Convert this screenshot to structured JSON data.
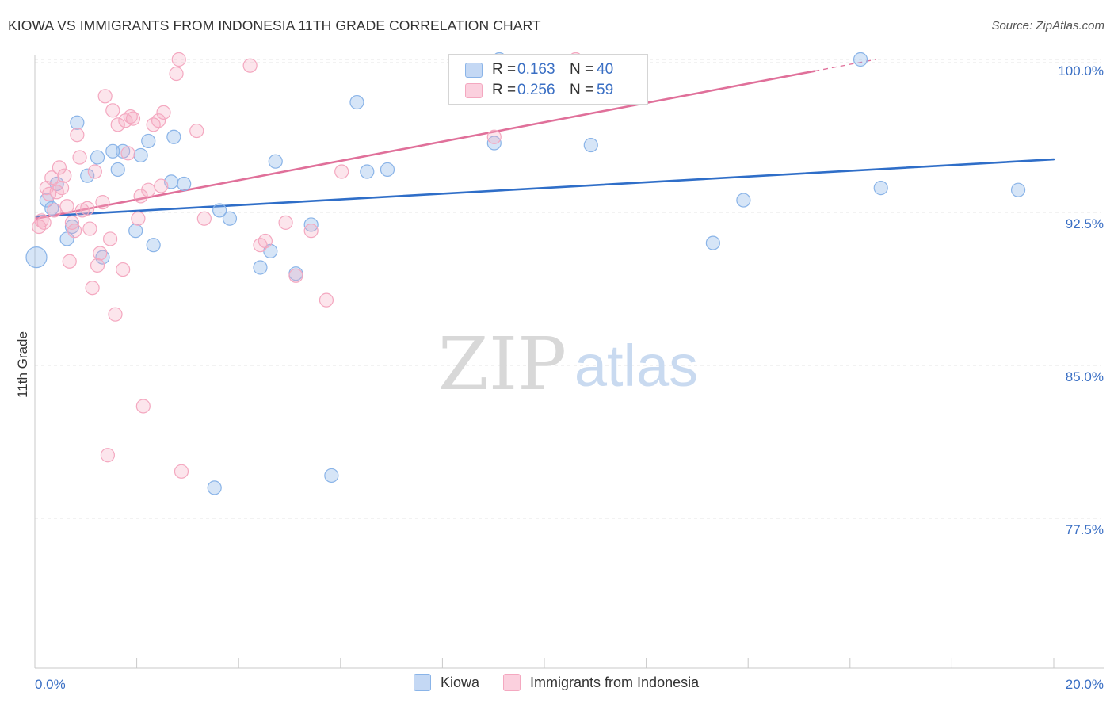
{
  "title": "KIOWA VS IMMIGRANTS FROM INDONESIA 11TH GRADE CORRELATION CHART",
  "source": "Source: ZipAtlas.com",
  "watermark": {
    "zip": "ZIP",
    "atlas": "atlas"
  },
  "legend": {
    "r_label": "R =",
    "n_label": "N =",
    "series": [
      {
        "r_value": "0.163",
        "n_value": "40"
      },
      {
        "r_value": "0.256",
        "n_value": "59"
      }
    ]
  },
  "chart_data": {
    "type": "scatter",
    "title": "KIOWA VS IMMIGRANTS FROM INDONESIA 11TH GRADE CORRELATION CHART",
    "xlabel": "",
    "ylabel": "11th Grade",
    "xlim": [
      0,
      20
    ],
    "ylim": [
      70,
      101.5
    ],
    "x_tick_labels": [
      "0.0%",
      "20.0%"
    ],
    "y_ticks": [
      77.5,
      85.0,
      92.5,
      100.0
    ],
    "y_tick_labels": [
      "77.5%",
      "85.0%",
      "92.5%",
      "100.0%"
    ],
    "grid": true,
    "legend_position": "top-center",
    "series": [
      {
        "name": "Kiowa",
        "color": "#8ab4e8",
        "line_color": "#2f6ec8",
        "trend": {
          "x0": 0,
          "y0": 92.3,
          "x1": 20,
          "y1": 95.1,
          "dash_from": 20
        },
        "points": [
          [
            0.0,
            90.3
          ],
          [
            0.2,
            93.1
          ],
          [
            0.3,
            92.7
          ],
          [
            0.4,
            93.9
          ],
          [
            0.6,
            91.2
          ],
          [
            0.7,
            91.8
          ],
          [
            0.8,
            96.9
          ],
          [
            1.0,
            94.3
          ],
          [
            1.2,
            95.2
          ],
          [
            1.3,
            90.3
          ],
          [
            1.5,
            95.5
          ],
          [
            1.6,
            94.6
          ],
          [
            1.7,
            95.5
          ],
          [
            1.95,
            91.6
          ],
          [
            2.05,
            95.3
          ],
          [
            2.2,
            96.0
          ],
          [
            2.3,
            90.9
          ],
          [
            2.7,
            96.2
          ],
          [
            2.9,
            93.9
          ],
          [
            3.5,
            79.0
          ],
          [
            3.6,
            92.6
          ],
          [
            3.8,
            92.2
          ],
          [
            4.4,
            89.8
          ],
          [
            4.6,
            90.6
          ],
          [
            4.7,
            95.0
          ],
          [
            5.1,
            89.5
          ],
          [
            5.4,
            91.9
          ],
          [
            5.8,
            79.6
          ],
          [
            6.3,
            97.9
          ],
          [
            6.5,
            94.5
          ],
          [
            6.9,
            94.6
          ],
          [
            9.0,
            95.9
          ],
          [
            9.1,
            100.0
          ],
          [
            10.9,
            95.8
          ],
          [
            13.3,
            91.0
          ],
          [
            13.9,
            93.1
          ],
          [
            16.2,
            100.0
          ],
          [
            16.6,
            93.7
          ],
          [
            19.3,
            93.6
          ],
          [
            2.65,
            94.0
          ]
        ]
      },
      {
        "name": "Immigrants from Indonesia",
        "color": "#f4a8c0",
        "line_color": "#e0709a",
        "trend": {
          "x0": 0,
          "y0": 92.2,
          "x1": 16.5,
          "y1": 100.0,
          "dash_from": 15.3
        },
        "points": [
          [
            0.05,
            91.8
          ],
          [
            0.1,
            92.1
          ],
          [
            0.15,
            92.0
          ],
          [
            0.2,
            93.7
          ],
          [
            0.25,
            93.4
          ],
          [
            0.3,
            94.2
          ],
          [
            0.35,
            92.6
          ],
          [
            0.4,
            93.5
          ],
          [
            0.45,
            94.7
          ],
          [
            0.5,
            93.7
          ],
          [
            0.55,
            94.3
          ],
          [
            0.6,
            92.8
          ],
          [
            0.65,
            90.1
          ],
          [
            0.7,
            92.0
          ],
          [
            0.75,
            91.6
          ],
          [
            0.8,
            96.3
          ],
          [
            0.85,
            95.2
          ],
          [
            0.9,
            92.6
          ],
          [
            1.0,
            92.7
          ],
          [
            1.05,
            91.7
          ],
          [
            1.1,
            88.8
          ],
          [
            1.15,
            94.5
          ],
          [
            1.2,
            89.9
          ],
          [
            1.25,
            90.5
          ],
          [
            1.3,
            93.0
          ],
          [
            1.35,
            98.2
          ],
          [
            1.4,
            80.6
          ],
          [
            1.45,
            91.2
          ],
          [
            1.5,
            97.5
          ],
          [
            1.55,
            87.5
          ],
          [
            1.6,
            96.8
          ],
          [
            1.7,
            89.7
          ],
          [
            1.75,
            97.0
          ],
          [
            1.8,
            95.4
          ],
          [
            1.85,
            97.2
          ],
          [
            1.9,
            97.1
          ],
          [
            2.0,
            92.2
          ],
          [
            2.05,
            93.3
          ],
          [
            2.1,
            83.0
          ],
          [
            2.2,
            93.6
          ],
          [
            2.3,
            96.8
          ],
          [
            2.4,
            97.0
          ],
          [
            2.45,
            93.8
          ],
          [
            2.5,
            97.4
          ],
          [
            2.75,
            99.3
          ],
          [
            2.8,
            100.0
          ],
          [
            2.85,
            79.8
          ],
          [
            3.15,
            96.5
          ],
          [
            3.3,
            92.2
          ],
          [
            4.2,
            99.7
          ],
          [
            4.4,
            90.9
          ],
          [
            4.5,
            91.1
          ],
          [
            4.9,
            92.0
          ],
          [
            5.1,
            89.4
          ],
          [
            5.4,
            91.6
          ],
          [
            5.7,
            88.2
          ],
          [
            6.0,
            94.5
          ],
          [
            9.0,
            96.2
          ],
          [
            10.6,
            100.0
          ]
        ]
      }
    ]
  }
}
